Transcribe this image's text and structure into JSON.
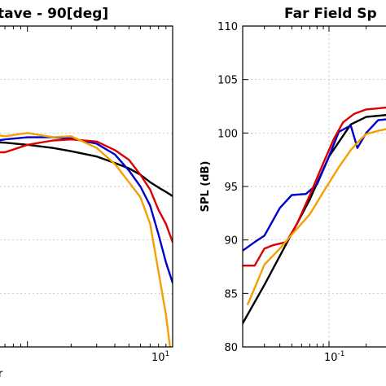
{
  "chart_data": [
    {
      "type": "line",
      "title": "tave - 90[deg]",
      "x_scale": "log",
      "xlim": [
        0.5,
        10
      ],
      "ylim": [
        80,
        110
      ],
      "grid": true,
      "x_tick_labels": [
        {
          "base": "10",
          "exp": "1"
        }
      ],
      "xlabel_partial": "r",
      "series": [
        {
          "color": "#000000",
          "x": [
            0.5,
            0.7,
            1.0,
            1.5,
            2.0,
            3.0,
            4.0,
            5.0,
            6.0,
            7.0,
            8.0,
            9.0,
            10.0
          ],
          "y": [
            99.2,
            99.1,
            98.9,
            98.6,
            98.3,
            97.8,
            97.2,
            96.7,
            96.1,
            95.4,
            94.9,
            94.5,
            94.1
          ]
        },
        {
          "color": "#0000cc",
          "x": [
            0.5,
            0.7,
            1.0,
            1.5,
            2.0,
            3.0,
            4.0,
            5.0,
            6.0,
            7.0,
            8.0,
            9.0,
            10.0
          ],
          "y": [
            99.1,
            99.4,
            99.6,
            99.6,
            99.5,
            99.0,
            98.0,
            96.5,
            95.0,
            93.2,
            90.5,
            87.9,
            86.0
          ]
        },
        {
          "color": "#dd0000",
          "x": [
            0.5,
            0.7,
            1.0,
            1.5,
            2.0,
            3.0,
            4.0,
            5.0,
            6.0,
            7.0,
            8.0,
            9.0,
            10.0
          ],
          "y": [
            98.2,
            98.2,
            98.9,
            99.3,
            99.4,
            99.2,
            98.4,
            97.5,
            96.1,
            94.7,
            92.8,
            91.5,
            89.8
          ]
        },
        {
          "color": "#f5a000",
          "x": [
            0.5,
            0.7,
            1.0,
            1.5,
            2.0,
            3.0,
            4.0,
            5.0,
            6.0,
            7.0,
            8.0,
            9.0,
            9.6
          ],
          "y": [
            100.0,
            99.7,
            100.0,
            99.6,
            99.7,
            98.6,
            97.1,
            95.4,
            94.0,
            91.5,
            87.0,
            83.0,
            80.0
          ]
        }
      ]
    },
    {
      "type": "line",
      "title": "Far Field Sp",
      "ylabel": "SPL (dB)",
      "x_scale": "log",
      "xlim": [
        0.02,
        0.5
      ],
      "ylim": [
        80,
        110
      ],
      "yticks": [
        80,
        85,
        90,
        95,
        100,
        105,
        110
      ],
      "grid": true,
      "x_tick_labels": [
        {
          "base": "10",
          "exp": "-1"
        }
      ],
      "series": [
        {
          "color": "#000000",
          "x": [
            0.02,
            0.03,
            0.05,
            0.07,
            0.1,
            0.15,
            0.2,
            0.3,
            0.5
          ],
          "y": [
            82.2,
            85.8,
            90.6,
            93.8,
            97.8,
            100.8,
            101.5,
            101.7,
            101.7
          ]
        },
        {
          "color": "#0000cc",
          "x": [
            0.02,
            0.025,
            0.03,
            0.04,
            0.05,
            0.065,
            0.08,
            0.1,
            0.12,
            0.15,
            0.17,
            0.2,
            0.25,
            0.3,
            0.5
          ],
          "y": [
            89.0,
            89.8,
            90.4,
            93.0,
            94.2,
            94.3,
            95.2,
            97.8,
            100.1,
            100.7,
            98.6,
            100.0,
            101.2,
            101.3,
            101.3
          ]
        },
        {
          "color": "#dd0000",
          "x": [
            0.02,
            0.025,
            0.03,
            0.035,
            0.045,
            0.055,
            0.07,
            0.09,
            0.11,
            0.13,
            0.16,
            0.2,
            0.25,
            0.3,
            0.5
          ],
          "y": [
            87.6,
            87.6,
            89.2,
            89.5,
            89.8,
            91.5,
            94.2,
            97.2,
            99.5,
            101.0,
            101.8,
            102.2,
            102.3,
            102.4,
            102.5
          ]
        },
        {
          "color": "#f5a000",
          "x": [
            0.022,
            0.025,
            0.03,
            0.04,
            0.05,
            0.07,
            0.09,
            0.12,
            0.15,
            0.18,
            0.2,
            0.25,
            0.3,
            0.5
          ],
          "y": [
            84.0,
            85.5,
            87.7,
            89.2,
            90.5,
            92.4,
            94.5,
            96.8,
            98.4,
            99.4,
            99.9,
            100.2,
            100.4,
            100.5
          ]
        }
      ]
    }
  ]
}
